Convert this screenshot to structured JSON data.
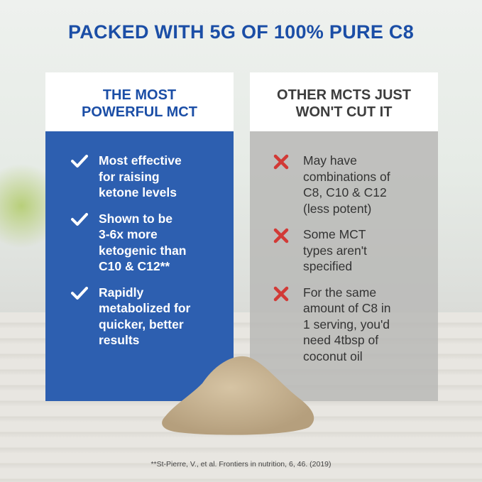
{
  "title": "PACKED WITH 5G OF 100% PURE C8",
  "left": {
    "heading_line1": "THE MOST",
    "heading_line2": "POWERFUL MCT",
    "icon": "check-icon",
    "items": [
      [
        "Most effective",
        "for raising",
        "ketone levels"
      ],
      [
        "Shown to be",
        "3-6x more",
        "ketogenic than",
        "C10 & C12**"
      ],
      [
        "Rapidly",
        "metabolized for",
        "quicker, better",
        "results"
      ]
    ]
  },
  "right": {
    "heading_line1": "OTHER MCTS JUST",
    "heading_line2": "WON'T CUT IT",
    "icon": "x-icon",
    "items": [
      [
        "May have",
        "combinations of",
        "C8, C10 & C12",
        "(less potent)"
      ],
      [
        "Some MCT",
        "types aren't",
        "specified"
      ],
      [
        "For the same",
        "amount of C8 in",
        "1 serving, you'd",
        "need 4tbsp of",
        "coconut oil"
      ]
    ]
  },
  "citation": "**St-Pierre, V., et al. Frontiers in nutrition, 6, 46. (2019)",
  "colors": {
    "brand_blue": "#1b4ea6",
    "panel_blue": "#2d5fb0",
    "x_red": "#d23a36"
  }
}
